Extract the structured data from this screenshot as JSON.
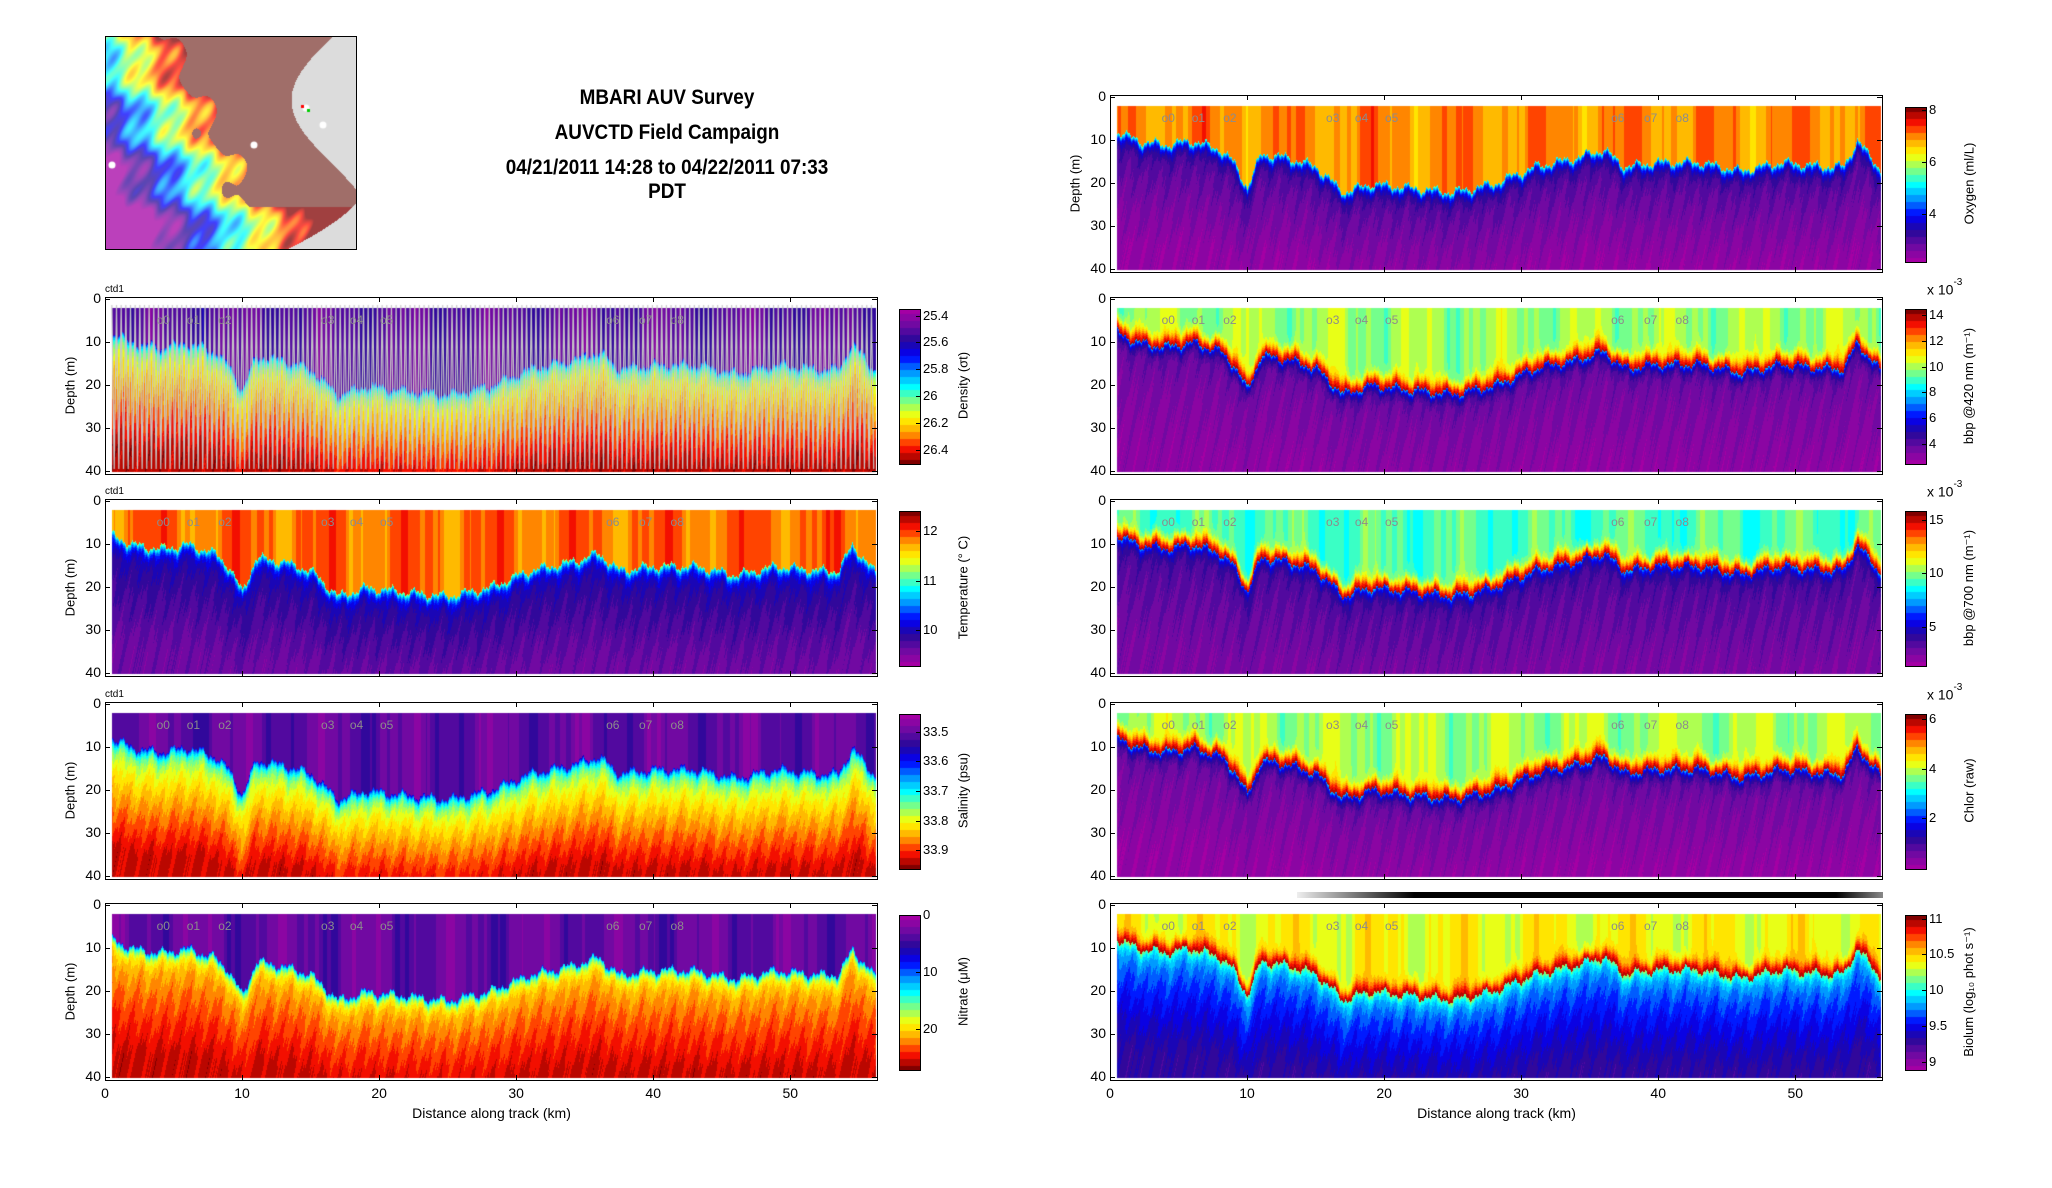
{
  "header": {
    "title": "MBARI AUV Survey",
    "subtitle": "AUVCTD Field Campaign",
    "date_range": "04/21/2011 14:28 to 04/22/2011 07:33 PDT"
  },
  "colors": {
    "colormap": [
      "#a400a4",
      "#6c0aa2",
      "#24089a",
      "#0000ff",
      "#0090ff",
      "#00ffff",
      "#80ff80",
      "#ffff00",
      "#ffa000",
      "#ff1000",
      "#800000"
    ],
    "station_label": "#8c8c8c",
    "trajectory": "#c8c8c8"
  },
  "chart_data": {
    "type": "heatmap",
    "xlabel": "Distance along track (km)",
    "ylabel": "Depth (m)",
    "xlim": [
      0,
      56.4
    ],
    "ylim": [
      40,
      0
    ],
    "x_ticks": [
      0,
      10,
      20,
      30,
      40,
      50
    ],
    "y_ticks": [
      0,
      10,
      20,
      30,
      40
    ],
    "data_depth_range": [
      2,
      40
    ],
    "stations": [
      {
        "label": "0",
        "km": 4.2
      },
      {
        "label": "1",
        "km": 6.4
      },
      {
        "label": "2",
        "km": 8.7
      },
      {
        "label": "3",
        "km": 16.2
      },
      {
        "label": "4",
        "km": 18.3
      },
      {
        "label": "5",
        "km": 20.5
      },
      {
        "label": "6",
        "km": 37.0
      },
      {
        "label": "7",
        "km": 39.4
      },
      {
        "label": "8",
        "km": 41.7
      }
    ],
    "interface_depth": {
      "km": [
        0,
        2,
        4,
        6,
        8,
        9,
        10,
        11,
        13,
        15,
        17,
        19,
        22,
        25,
        28,
        31,
        34,
        36,
        37.5,
        40,
        43,
        46,
        49,
        52,
        53.5,
        54.5,
        56.3
      ],
      "depth_m": [
        7,
        10,
        11,
        10,
        12,
        15,
        21,
        13,
        14,
        16,
        22,
        20,
        21,
        22,
        20,
        16,
        14,
        12,
        16,
        15,
        15,
        17,
        15,
        16,
        16,
        10,
        17
      ]
    },
    "panels": [
      {
        "id": "density",
        "column": "left",
        "ctd_label": "ctd1",
        "colorbar_label": "Density (σt)",
        "clim": [
          25.35,
          26.5
        ],
        "reversed": true,
        "ticks": [
          25.4,
          25.6,
          25.8,
          26,
          26.2,
          26.4
        ],
        "exponent": "",
        "above": 25.5,
        "near": 26.0,
        "deep": 26.45,
        "layer": null,
        "trajectory": true,
        "x_labels": false
      },
      {
        "id": "temperature",
        "column": "left",
        "ctd_label": "ctd1",
        "colorbar_label": "Temperature (° C)",
        "clim": [
          9.3,
          12.4
        ],
        "reversed": false,
        "ticks": [
          12,
          11,
          10
        ],
        "exponent": "",
        "above": 11.9,
        "near": 10.1,
        "deep": 9.6,
        "layer": null,
        "trajectory": false,
        "x_labels": false
      },
      {
        "id": "salinity",
        "column": "left",
        "ctd_label": "ctd1",
        "colorbar_label": "Salinity (psu)",
        "clim": [
          33.44,
          33.96
        ],
        "reversed": true,
        "ticks": [
          33.5,
          33.6,
          33.7,
          33.8,
          33.9
        ],
        "exponent": "",
        "above": 33.5,
        "near": 33.72,
        "deep": 33.93,
        "layer": null,
        "trajectory": false,
        "x_labels": false
      },
      {
        "id": "nitrate",
        "column": "left",
        "ctd_label": "",
        "colorbar_label": "Nitrate (μM)",
        "clim": [
          0,
          27
        ],
        "reversed": true,
        "ticks": [
          0,
          10,
          20
        ],
        "exponent": "",
        "above": 3,
        "near": 19,
        "deep": 25.5,
        "layer": null,
        "trajectory": false,
        "x_labels": true
      },
      {
        "id": "oxygen",
        "column": "right",
        "ctd_label": "",
        "colorbar_label": "Oxygen (ml/L)",
        "clim": [
          2.2,
          8.1
        ],
        "reversed": false,
        "ticks": [
          8,
          6,
          4
        ],
        "exponent": "",
        "above": 7.0,
        "near": 3.3,
        "deep": 2.4,
        "layer": null,
        "trajectory": false,
        "x_labels": false
      },
      {
        "id": "bbp420",
        "column": "right",
        "ctd_label": "",
        "colorbar_label": "bbp @420 nm (m⁻¹)",
        "clim": [
          2.5,
          14.5
        ],
        "reversed": false,
        "ticks": [
          14,
          12,
          10,
          8,
          6,
          4
        ],
        "exponent": "-3",
        "above": 10,
        "near": 4,
        "deep": 3,
        "layer": 13.8,
        "trajectory": false,
        "x_labels": false
      },
      {
        "id": "bbp700",
        "column": "right",
        "ctd_label": "",
        "colorbar_label": "bbp @700 nm (m⁻¹)",
        "clim": [
          1.5,
          15.8
        ],
        "reversed": false,
        "ticks": [
          15,
          10,
          5
        ],
        "exponent": "-3",
        "above": 9.5,
        "near": 4,
        "deep": 2.6,
        "layer": 15,
        "trajectory": false,
        "x_labels": false
      },
      {
        "id": "chlor",
        "column": "right",
        "ctd_label": "",
        "colorbar_label": "Chlor (raw)",
        "clim": [
          0,
          6.2
        ],
        "reversed": false,
        "ticks": [
          6,
          4,
          2
        ],
        "exponent": "-3",
        "above": 3.9,
        "near": 0.8,
        "deep": 0.2,
        "layer": 5.9,
        "trajectory": false,
        "x_labels": false
      },
      {
        "id": "biolum",
        "column": "right",
        "ctd_label": "",
        "colorbar_label": "Biolum (log₁₀ phot s⁻¹)",
        "clim": [
          8.9,
          11.05
        ],
        "reversed": false,
        "ticks": [
          11,
          10.5,
          10,
          9.5,
          9
        ],
        "exponent": "",
        "above": 10.4,
        "near": 9.9,
        "deep": 9.3,
        "layer": 10.95,
        "trajectory": false,
        "x_labels": true
      }
    ]
  },
  "exponent_prefix": "x 10"
}
